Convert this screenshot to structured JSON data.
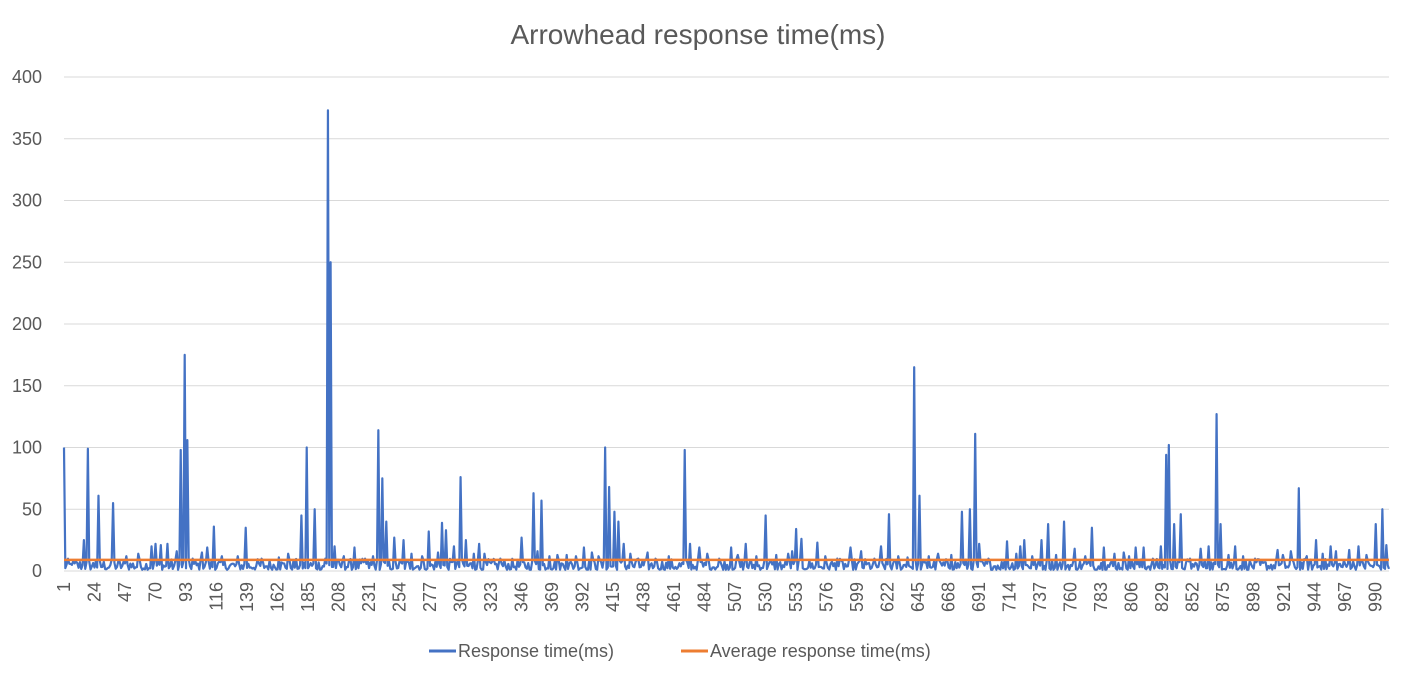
{
  "chart_data": {
    "type": "line",
    "title": "Arrowhead response time(ms)",
    "xlabel": "",
    "ylabel": "",
    "ylim": [
      0,
      400
    ],
    "yticks": [
      "0",
      "50",
      "100",
      "150",
      "200",
      "250",
      "300",
      "350",
      "400"
    ],
    "xticks": [
      "1",
      "24",
      "47",
      "70",
      "93",
      "116",
      "139",
      "162",
      "185",
      "208",
      "231",
      "254",
      "277",
      "300",
      "323",
      "346",
      "369",
      "392",
      "415",
      "438",
      "461",
      "484",
      "507",
      "530",
      "553",
      "576",
      "599",
      "622",
      "645",
      "668",
      "691",
      "714",
      "737",
      "760",
      "783",
      "806",
      "829",
      "852",
      "875",
      "898",
      "921",
      "944",
      "967",
      "990"
    ],
    "xlim": [
      1,
      1000
    ],
    "grid": "horizontal",
    "legend_position": "bottom",
    "series": [
      {
        "name": "Response time(ms)",
        "color": "#4472C4",
        "baseline_range_ms": [
          1,
          10
        ],
        "peaks": [
          [
            1,
            100
          ],
          [
            7,
            5
          ],
          [
            16,
            25
          ],
          [
            19,
            99
          ],
          [
            25,
            8
          ],
          [
            27,
            61
          ],
          [
            36,
            5
          ],
          [
            38,
            55
          ],
          [
            48,
            12
          ],
          [
            57,
            14
          ],
          [
            67,
            20
          ],
          [
            70,
            22
          ],
          [
            74,
            21
          ],
          [
            79,
            22
          ],
          [
            86,
            16
          ],
          [
            89,
            98
          ],
          [
            92,
            175
          ],
          [
            94,
            106
          ],
          [
            98,
            10
          ],
          [
            105,
            15
          ],
          [
            109,
            19
          ],
          [
            114,
            36
          ],
          [
            120,
            12
          ],
          [
            132,
            12
          ],
          [
            138,
            35
          ],
          [
            150,
            10
          ],
          [
            163,
            11
          ],
          [
            170,
            14
          ],
          [
            180,
            45
          ],
          [
            184,
            100
          ],
          [
            190,
            50
          ],
          [
            198,
            10
          ],
          [
            200,
            373
          ],
          [
            202,
            250
          ],
          [
            205,
            20
          ],
          [
            212,
            12
          ],
          [
            220,
            19
          ],
          [
            228,
            10
          ],
          [
            234,
            12
          ],
          [
            238,
            114
          ],
          [
            241,
            75
          ],
          [
            244,
            40
          ],
          [
            250,
            27
          ],
          [
            257,
            25
          ],
          [
            263,
            14
          ],
          [
            271,
            12
          ],
          [
            276,
            32
          ],
          [
            283,
            15
          ],
          [
            286,
            39
          ],
          [
            289,
            33
          ],
          [
            295,
            20
          ],
          [
            300,
            76
          ],
          [
            304,
            25
          ],
          [
            310,
            14
          ],
          [
            314,
            22
          ],
          [
            318,
            14
          ],
          [
            330,
            10
          ],
          [
            346,
            27
          ],
          [
            355,
            63
          ],
          [
            358,
            16
          ],
          [
            361,
            57
          ],
          [
            367,
            12
          ],
          [
            373,
            13
          ],
          [
            380,
            13
          ],
          [
            387,
            12
          ],
          [
            393,
            19
          ],
          [
            399,
            15
          ],
          [
            404,
            12
          ],
          [
            409,
            100
          ],
          [
            412,
            68
          ],
          [
            416,
            48
          ],
          [
            419,
            40
          ],
          [
            423,
            22
          ],
          [
            428,
            14
          ],
          [
            434,
            10
          ],
          [
            441,
            15
          ],
          [
            447,
            10
          ],
          [
            457,
            12
          ],
          [
            469,
            98
          ],
          [
            473,
            22
          ],
          [
            480,
            19
          ],
          [
            486,
            14
          ],
          [
            495,
            10
          ],
          [
            504,
            19
          ],
          [
            509,
            13
          ],
          [
            515,
            22
          ],
          [
            523,
            12
          ],
          [
            530,
            45
          ],
          [
            538,
            13
          ],
          [
            547,
            14
          ],
          [
            550,
            16
          ],
          [
            553,
            34
          ],
          [
            557,
            26
          ],
          [
            569,
            23
          ],
          [
            575,
            12
          ],
          [
            584,
            10
          ],
          [
            594,
            19
          ],
          [
            602,
            16
          ],
          [
            612,
            10
          ],
          [
            617,
            20
          ],
          [
            623,
            46
          ],
          [
            630,
            12
          ],
          [
            637,
            11
          ],
          [
            642,
            165
          ],
          [
            646,
            61
          ],
          [
            653,
            12
          ],
          [
            660,
            14
          ],
          [
            670,
            13
          ],
          [
            678,
            48
          ],
          [
            684,
            50
          ],
          [
            688,
            111
          ],
          [
            691,
            22
          ],
          [
            698,
            10
          ],
          [
            712,
            24
          ],
          [
            719,
            14
          ],
          [
            722,
            20
          ],
          [
            725,
            25
          ],
          [
            731,
            12
          ],
          [
            738,
            25
          ],
          [
            743,
            38
          ],
          [
            749,
            13
          ],
          [
            755,
            40
          ],
          [
            763,
            18
          ],
          [
            771,
            12
          ],
          [
            776,
            35
          ],
          [
            785,
            19
          ],
          [
            793,
            14
          ],
          [
            800,
            15
          ],
          [
            804,
            12
          ],
          [
            809,
            19
          ],
          [
            815,
            19
          ],
          [
            822,
            10
          ],
          [
            828,
            20
          ],
          [
            832,
            94
          ],
          [
            834,
            102
          ],
          [
            838,
            38
          ],
          [
            843,
            46
          ],
          [
            850,
            10
          ],
          [
            858,
            18
          ],
          [
            864,
            20
          ],
          [
            870,
            127
          ],
          [
            873,
            38
          ],
          [
            879,
            13
          ],
          [
            884,
            20
          ],
          [
            890,
            12
          ],
          [
            899,
            10
          ],
          [
            916,
            17
          ],
          [
            920,
            13
          ],
          [
            926,
            16
          ],
          [
            932,
            67
          ],
          [
            938,
            12
          ],
          [
            945,
            25
          ],
          [
            950,
            14
          ],
          [
            956,
            20
          ],
          [
            960,
            16
          ],
          [
            970,
            17
          ],
          [
            977,
            20
          ],
          [
            983,
            13
          ],
          [
            990,
            38
          ],
          [
            995,
            50
          ],
          [
            998,
            21
          ]
        ]
      },
      {
        "name": "Average response time(ms)",
        "color": "#ED7D31",
        "value": 9
      }
    ]
  }
}
